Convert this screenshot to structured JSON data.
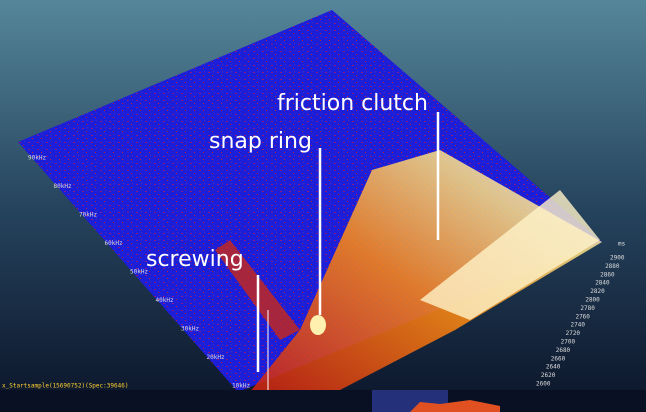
{
  "annotations": [
    "friction clutch",
    "snap ring",
    "screwing"
  ],
  "time_axis": {
    "labels": [
      "2600",
      "2620",
      "2640",
      "2660",
      "2680",
      "2700",
      "2720",
      "2740",
      "2760",
      "2780",
      "2800",
      "2820",
      "2840",
      "2860",
      "2880",
      "2900"
    ],
    "unit": "ms"
  },
  "frequency_axis": {
    "labels": [
      "90kHz",
      "80kHz",
      "70kHz",
      "60kHz",
      "50kHz",
      "40kHz",
      "30kHz",
      "20kHz",
      "10kHz"
    ]
  },
  "status_text": "x_Startsample(15690752)(Spec:39646)"
}
